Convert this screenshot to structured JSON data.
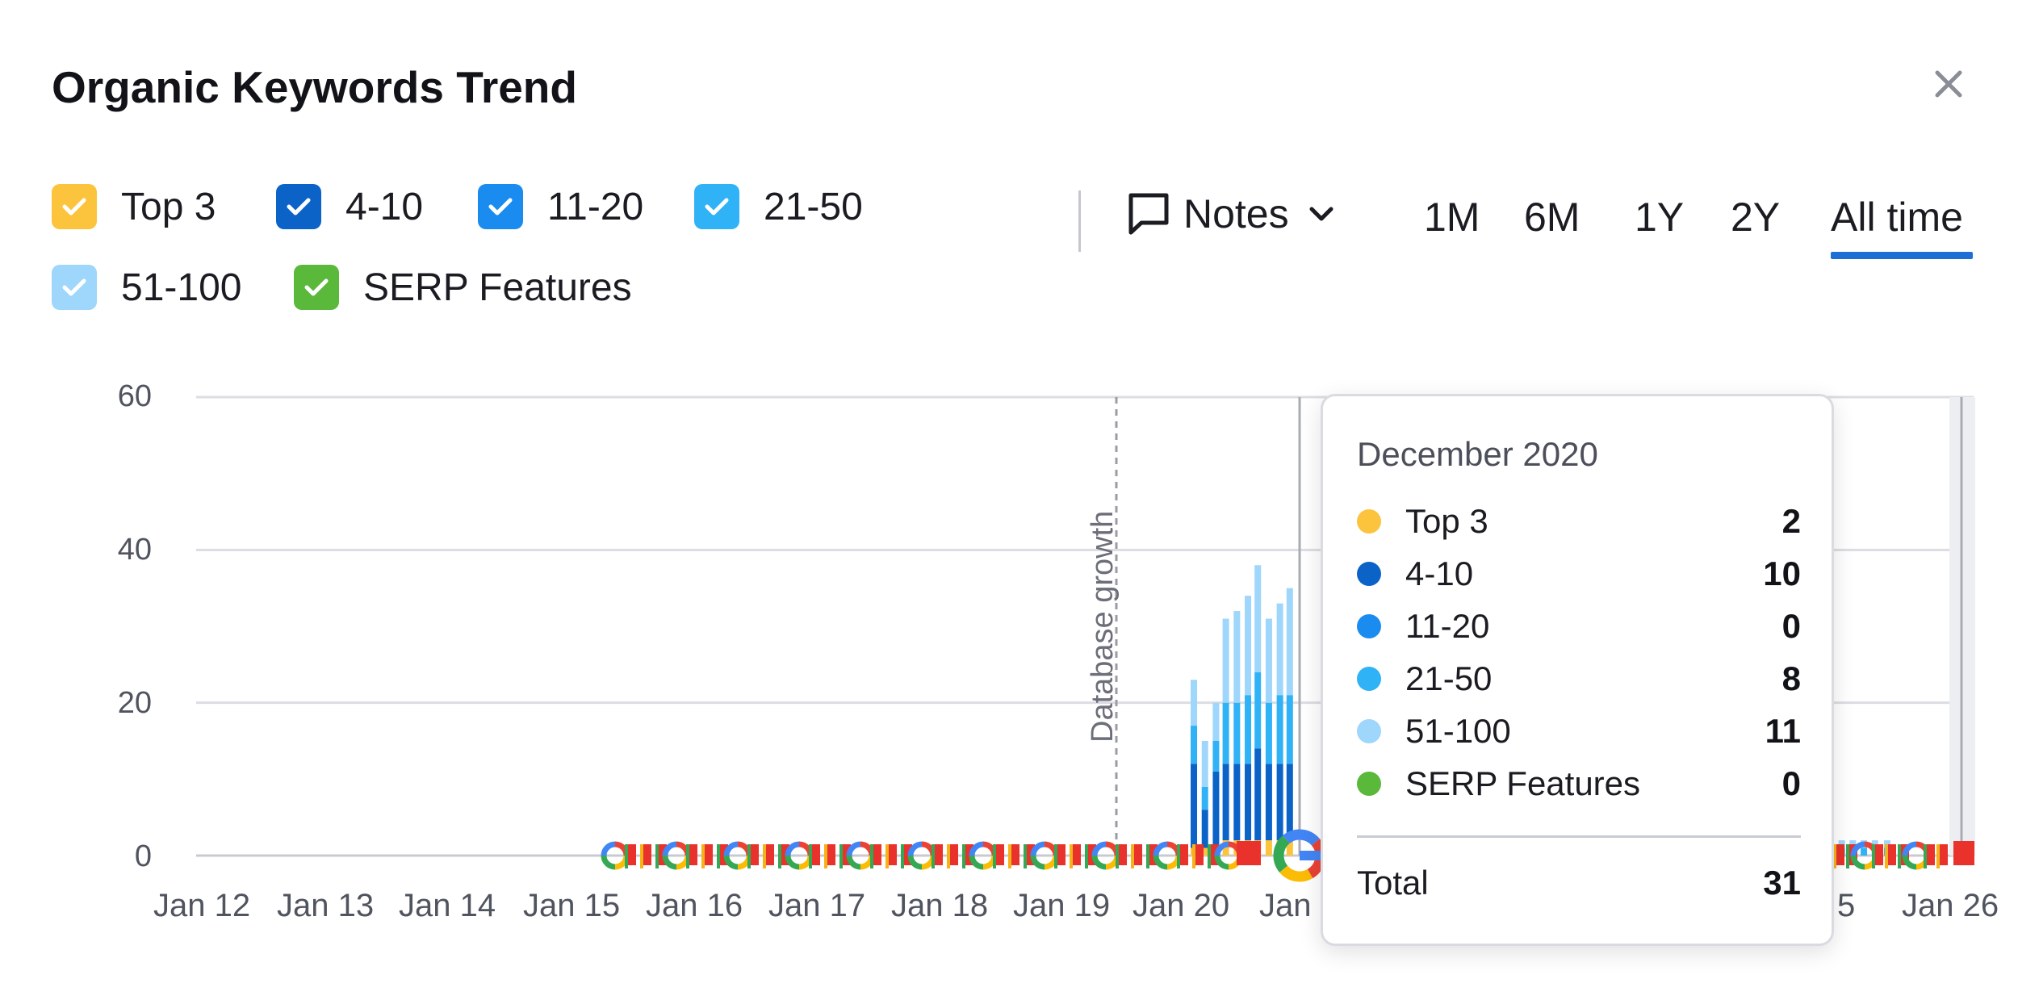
{
  "title": "Organic Keywords Trend",
  "close_icon": "close-icon",
  "legend": [
    {
      "label": "Top 3",
      "color": "#fcc43c",
      "checked": true
    },
    {
      "label": "4-10",
      "color": "#0b63c8",
      "checked": true
    },
    {
      "label": "11-20",
      "color": "#1a8cf0",
      "checked": true
    },
    {
      "label": "21-50",
      "color": "#30b2f7",
      "checked": true
    },
    {
      "label": "51-100",
      "color": "#9fd6fb",
      "checked": true
    },
    {
      "label": "SERP Features",
      "color": "#5ab83a",
      "checked": true
    }
  ],
  "notes": {
    "label": "Notes",
    "icon": "comment-icon"
  },
  "ranges": [
    "1M",
    "6M",
    "1Y",
    "2Y",
    "All time"
  ],
  "active_range": "All time",
  "chart_data": {
    "type": "bar",
    "stacked": true,
    "y_ticks": [
      "60",
      "40",
      "20",
      "0"
    ],
    "ylim": [
      0,
      60
    ],
    "x_ticks": [
      "Jan 12",
      "Jan 13",
      "Jan 14",
      "Jan 15",
      "Jan 16",
      "Jan 17",
      "Jan 18",
      "Jan 19",
      "Jan 20",
      "Jan",
      "5",
      "Jan 26"
    ],
    "annotation": "Database growth",
    "series": [
      {
        "name": "Top 3",
        "color": "#fcc43c"
      },
      {
        "name": "4-10",
        "color": "#0b63c8"
      },
      {
        "name": "11-20",
        "color": "#1a8cf0"
      },
      {
        "name": "21-50",
        "color": "#30b2f7"
      },
      {
        "name": "51-100",
        "color": "#9fd6fb"
      }
    ],
    "bars": [
      {
        "x": 20.05,
        "values": [
          1,
          11,
          0,
          5,
          6
        ]
      },
      {
        "x": 20.14,
        "values": [
          1,
          5,
          0,
          3,
          6
        ]
      },
      {
        "x": 20.23,
        "values": [
          1,
          10,
          0,
          4,
          5
        ]
      },
      {
        "x": 20.31,
        "values": [
          2,
          10,
          0,
          8,
          11
        ]
      },
      {
        "x": 20.4,
        "values": [
          2,
          10,
          0,
          8,
          12
        ]
      },
      {
        "x": 20.49,
        "values": [
          2,
          10,
          0,
          9,
          13
        ]
      },
      {
        "x": 20.57,
        "values": [
          2,
          12,
          0,
          10,
          14
        ]
      },
      {
        "x": 20.66,
        "values": [
          2,
          10,
          0,
          8,
          11
        ]
      },
      {
        "x": 20.75,
        "values": [
          2,
          10,
          0,
          9,
          12
        ]
      },
      {
        "x": 20.83,
        "values": [
          2,
          10,
          0,
          9,
          14
        ]
      },
      {
        "x": 25.13,
        "values": [
          0,
          1,
          0,
          1,
          2
        ]
      },
      {
        "x": 25.23,
        "values": [
          0,
          1,
          0,
          0,
          1
        ]
      },
      {
        "x": 25.32,
        "values": [
          0,
          0,
          0,
          1,
          1
        ]
      },
      {
        "x": 25.41,
        "values": [
          0,
          0,
          0,
          1,
          1
        ]
      },
      {
        "x": 25.5,
        "values": [
          0,
          0,
          0,
          1,
          1
        ]
      },
      {
        "x": 25.59,
        "values": [
          0,
          0,
          0,
          1,
          1
        ]
      },
      {
        "x": 25.69,
        "values": [
          0,
          0,
          0,
          1,
          1
        ]
      }
    ]
  },
  "tooltip": {
    "title": "December 2020",
    "rows": [
      {
        "name": "Top 3",
        "value": "2",
        "color": "#fcc43c"
      },
      {
        "name": "4-10",
        "value": "10",
        "color": "#0b63c8"
      },
      {
        "name": "11-20",
        "value": "0",
        "color": "#1a8cf0"
      },
      {
        "name": "21-50",
        "value": "8",
        "color": "#30b2f7"
      },
      {
        "name": "51-100",
        "value": "11",
        "color": "#9fd6fb"
      },
      {
        "name": "SERP Features",
        "value": "0",
        "color": "#5ab83a"
      }
    ],
    "total_label": "Total",
    "total_value": "31"
  }
}
